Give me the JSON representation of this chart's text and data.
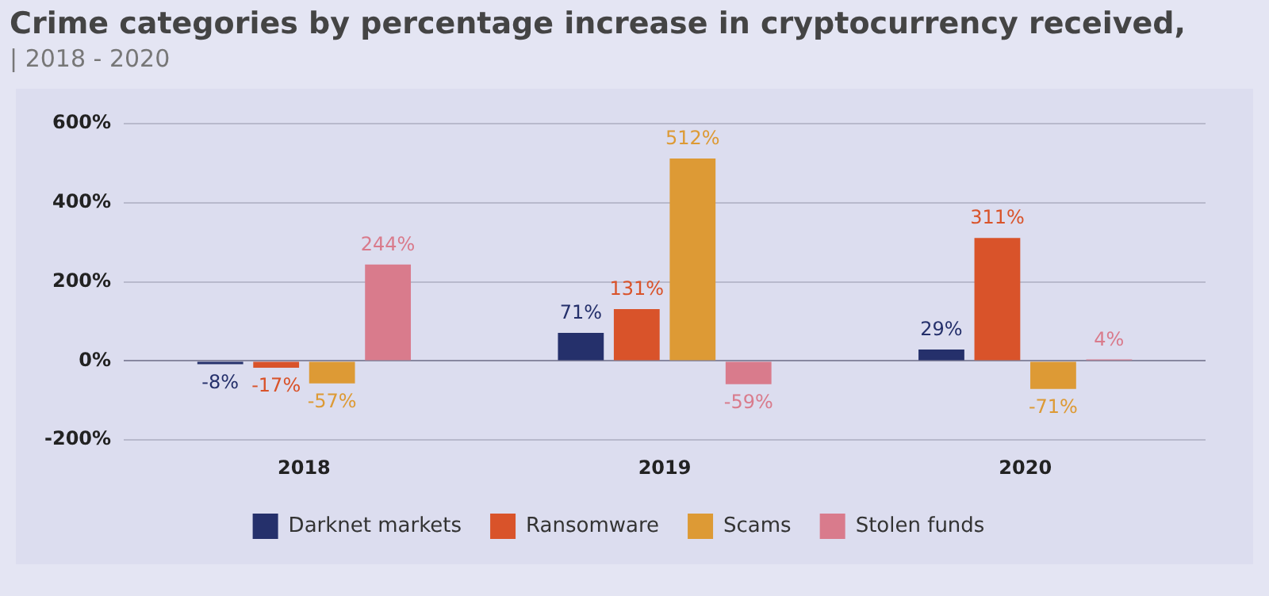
{
  "chart_data": {
    "type": "bar",
    "title": "Crime categories by percentage increase in cryptocurrency received,",
    "subtitle": "| 2018 - 2020",
    "categories": [
      "2018",
      "2019",
      "2020"
    ],
    "series": [
      {
        "name": "Darknet markets",
        "color": "#25306b",
        "values": [
          -8,
          71,
          29
        ],
        "value_labels": [
          "-8%",
          "71%",
          "29%"
        ]
      },
      {
        "name": "Ransomware",
        "color": "#d9532a",
        "values": [
          -17,
          131,
          311
        ],
        "value_labels": [
          "-17%",
          "131%",
          "311%"
        ]
      },
      {
        "name": "Scams",
        "color": "#dd9a35",
        "values": [
          -57,
          512,
          -71
        ],
        "value_labels": [
          "-57%",
          "512%",
          "-71%"
        ]
      },
      {
        "name": "Stolen funds",
        "color": "#d97b8c",
        "values": [
          244,
          -59,
          4
        ],
        "value_labels": [
          "244%",
          "-59%",
          "4%"
        ]
      }
    ],
    "ylim": [
      -200,
      600
    ],
    "yticks": [
      {
        "value": -200,
        "label": "-200%"
      },
      {
        "value": 0,
        "label": "0%"
      },
      {
        "value": 200,
        "label": "200%"
      },
      {
        "value": 400,
        "label": "400%"
      },
      {
        "value": 600,
        "label": "600%"
      }
    ],
    "grid": "y",
    "legend": "bottom"
  }
}
